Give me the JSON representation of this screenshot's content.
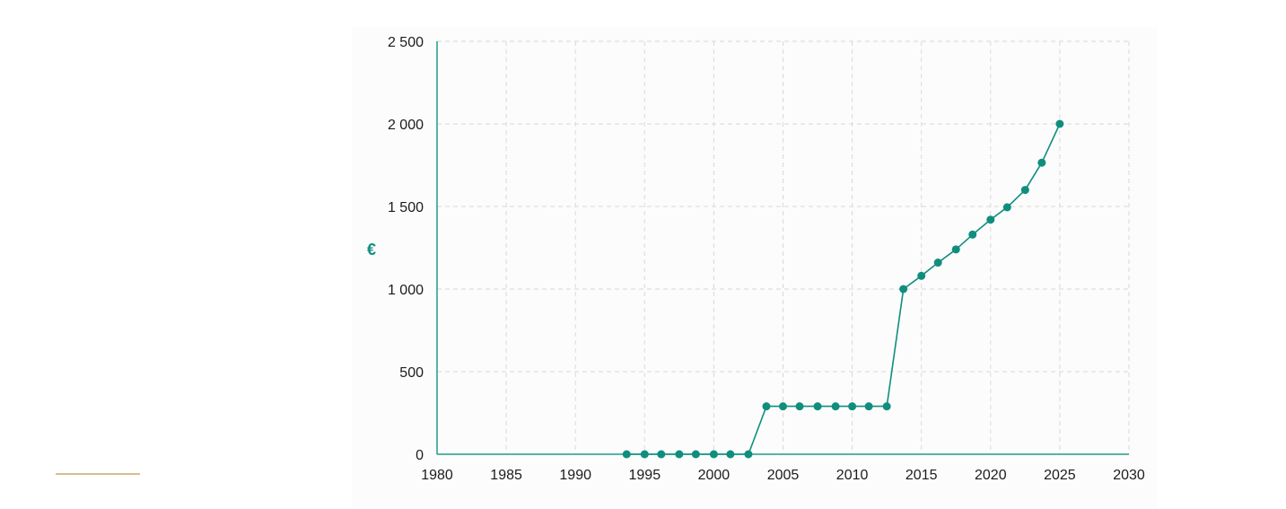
{
  "chart_data": {
    "type": "line",
    "title": "",
    "xlabel": "",
    "ylabel": "€",
    "xlim": [
      1980,
      2030
    ],
    "ylim": [
      0,
      2500
    ],
    "xticks": [
      1980,
      1985,
      1990,
      1995,
      2000,
      2005,
      2010,
      2015,
      2020,
      2025,
      2030
    ],
    "xtick_labels": [
      "1980",
      "1985",
      "1990",
      "1995",
      "2000",
      "2005",
      "2010",
      "2015",
      "2020",
      "2025",
      "2030"
    ],
    "yticks": [
      0,
      500,
      1000,
      1500,
      2000,
      2500
    ],
    "ytick_labels": [
      "0",
      "500",
      "1 000",
      "1 500",
      "2 000",
      "2 500"
    ],
    "grid": true,
    "legend": "none",
    "series": [
      {
        "x": [
          1993.7,
          1995.0,
          1996.2,
          1997.5,
          1998.7,
          2000.0,
          2001.2,
          2002.5,
          2003.8,
          2005.0,
          2006.2,
          2007.5,
          2008.8,
          2010.0,
          2011.2,
          2012.5,
          2013.7,
          2015.0,
          2016.2,
          2017.5,
          2018.7,
          2020.0,
          2021.2,
          2022.5,
          2023.7,
          2025.0
        ],
        "y": [
          0,
          0,
          0,
          0,
          0,
          0,
          0,
          0,
          290,
          290,
          290,
          290,
          290,
          290,
          290,
          290,
          1000,
          1080,
          1160,
          1240,
          1330,
          1420,
          1495,
          1600,
          1765,
          2000
        ]
      }
    ]
  },
  "colors": {
    "series": "#0f8e7e",
    "axis": "#1e9b89",
    "grid": "#d9d9d9",
    "panel": "#fcfcfc",
    "accent_rule": "#d7bd8e"
  }
}
